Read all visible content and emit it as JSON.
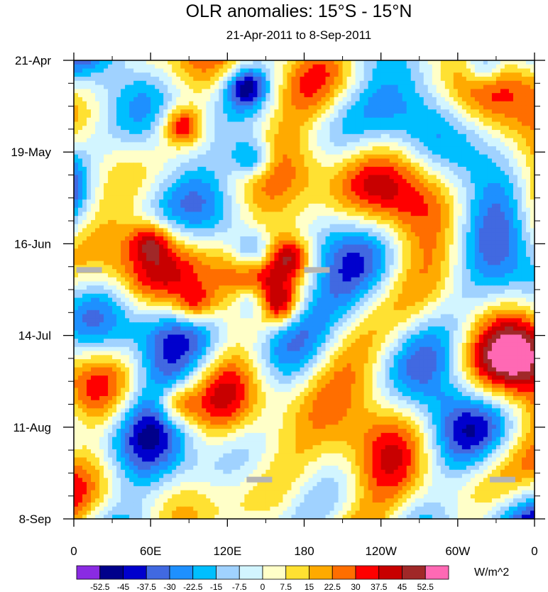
{
  "chart_data": {
    "type": "heatmap",
    "title": "OLR anomalies: 15°S - 15°N",
    "subtitle": "21-Apr-2011 to 8-Sep-2011",
    "x_ticks": [
      "0",
      "60E",
      "120E",
      "180",
      "120W",
      "60W",
      "0"
    ],
    "y_ticks": [
      "21-Apr",
      "19-May",
      "16-Jun",
      "14-Jul",
      "11-Aug",
      "8-Sep"
    ],
    "x_range_deg": [
      0,
      360
    ],
    "y_range_days": [
      0,
      140
    ],
    "colorbar": {
      "units": "W/m^2",
      "levels": [
        "-52.5",
        "-45",
        "-37.5",
        "-30",
        "-22.5",
        "-15",
        "-7.5",
        "0",
        "7.5",
        "15",
        "22.5",
        "30",
        "37.5",
        "45",
        "52.5"
      ],
      "colors": [
        "#8a2be2",
        "#00008b",
        "#0000cd",
        "#4169e1",
        "#1e90ff",
        "#00bfff",
        "#a0d2ff",
        "#d2f5ff",
        "#ffffc8",
        "#ffe132",
        "#ffaa00",
        "#ff6e00",
        "#ff0000",
        "#c80000",
        "#a02828",
        "#ff69b4"
      ]
    },
    "missing_data": [
      {
        "lon": 12,
        "day": 64
      },
      {
        "lon": 190,
        "day": 64
      },
      {
        "lon": 145,
        "day": 128
      },
      {
        "lon": 335,
        "day": 128
      }
    ],
    "features": [
      {
        "lon": 85,
        "day": 20,
        "value": 42
      },
      {
        "lon": 135,
        "day": 8,
        "value": -40
      },
      {
        "lon": 140,
        "day": 30,
        "value": -38
      },
      {
        "lon": 140,
        "day": 58,
        "value": -35
      },
      {
        "lon": 140,
        "day": 74,
        "value": -38
      },
      {
        "lon": 160,
        "day": 75,
        "value": 36
      },
      {
        "lon": 95,
        "day": 75,
        "value": 34
      },
      {
        "lon": 80,
        "day": 105,
        "value": 36
      },
      {
        "lon": 60,
        "day": 55,
        "value": 30
      },
      {
        "lon": 170,
        "day": 60,
        "value": 28
      },
      {
        "lon": 320,
        "day": 2,
        "value": -35
      }
    ]
  }
}
